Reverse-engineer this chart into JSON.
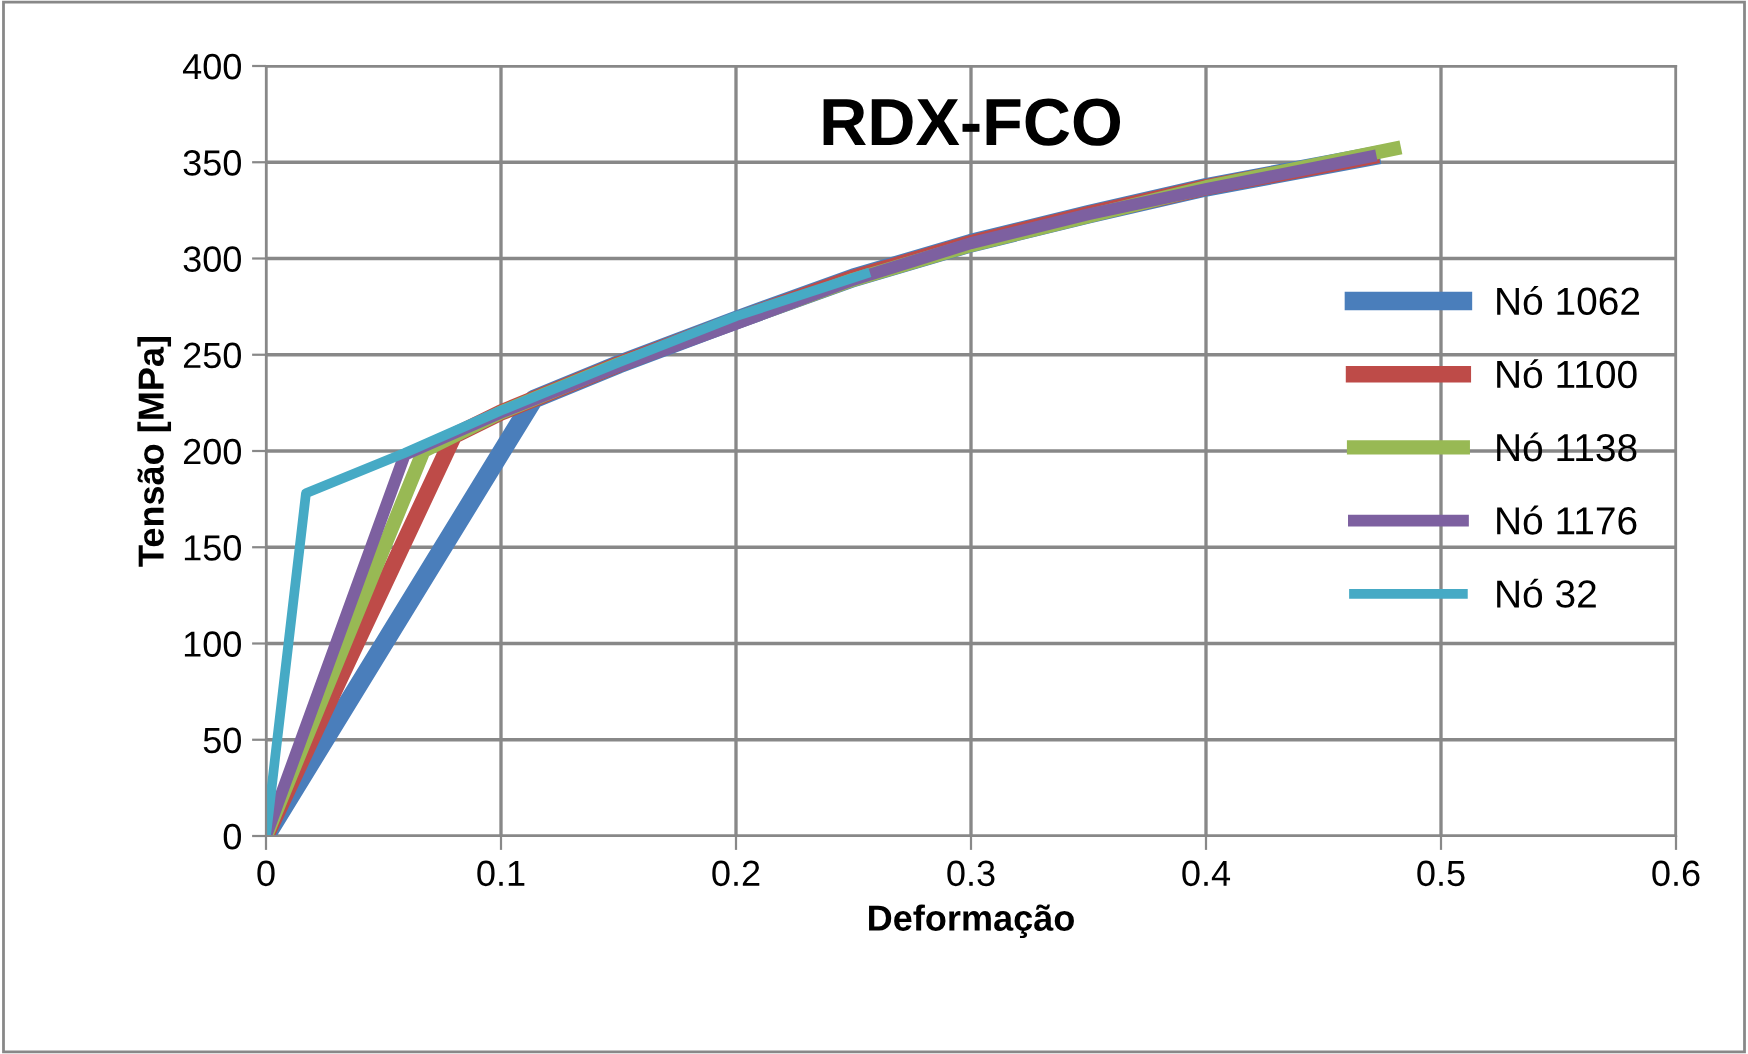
{
  "chart_data": {
    "type": "line",
    "title": "RDX-FCO",
    "xlabel": "Deformação",
    "ylabel": "Tensão [MPa]",
    "xlim": [
      0,
      0.6
    ],
    "xticks": [
      0,
      0.1,
      0.2,
      0.3,
      0.4,
      0.5,
      0.6
    ],
    "ylim": [
      0,
      400
    ],
    "yticks": [
      0,
      50,
      100,
      150,
      200,
      250,
      300,
      350,
      400
    ],
    "grid": true,
    "legend": "right",
    "marker": "none",
    "line_style": "solid",
    "series": [
      {
        "name": "Nó 1062",
        "color": "#4a7ebb",
        "x": [
          0,
          0.114,
          0.15,
          0.2,
          0.25,
          0.3,
          0.35,
          0.4,
          0.47
        ],
        "values": [
          0,
          227,
          245,
          268,
          290,
          308,
          323,
          337,
          353
        ]
      },
      {
        "name": "Nó 1100",
        "color": "#be4b48",
        "x": [
          0,
          0.08,
          0.1,
          0.15,
          0.2,
          0.25,
          0.3,
          0.35,
          0.4,
          0.47
        ],
        "values": [
          0,
          208,
          220,
          245,
          268,
          290,
          308,
          323,
          337,
          353
        ]
      },
      {
        "name": "Nó 1138",
        "color": "#98b954",
        "x": [
          0,
          0.067,
          0.1,
          0.15,
          0.2,
          0.25,
          0.3,
          0.35,
          0.4,
          0.48
        ],
        "values": [
          0,
          200,
          220,
          245,
          267,
          289,
          307,
          322,
          337,
          357
        ]
      },
      {
        "name": "Nó 1176",
        "color": "#7d60a0",
        "x": [
          0,
          0.059,
          0.1,
          0.15,
          0.2,
          0.25,
          0.3,
          0.35,
          0.4,
          0.47
        ],
        "values": [
          0,
          198,
          220,
          244,
          266,
          289,
          308,
          323,
          336,
          353
        ]
      },
      {
        "name": "Nó 32",
        "color": "#46aac5",
        "x": [
          0,
          0.017,
          0.059,
          0.1,
          0.15,
          0.2,
          0.255
        ],
        "values": [
          0,
          178,
          199,
          221,
          246,
          270,
          292
        ]
      }
    ]
  }
}
